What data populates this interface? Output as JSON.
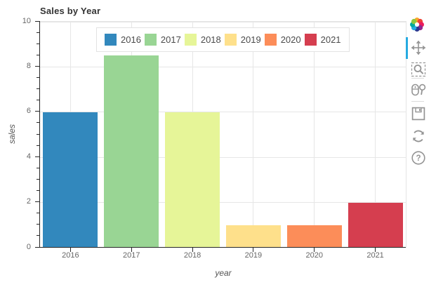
{
  "chart_data": {
    "type": "bar",
    "title": "Sales by Year",
    "categories": [
      "2016",
      "2017",
      "2018",
      "2019",
      "2020",
      "2021"
    ],
    "values": [
      6,
      8.5,
      6,
      1,
      1,
      2
    ],
    "bar_colors": [
      "#3288bd",
      "#99d594",
      "#e6f598",
      "#fee08b",
      "#fc8d59",
      "#d53e4f"
    ],
    "xlabel": "year",
    "ylabel": "sales",
    "ylim": [
      0,
      10
    ],
    "yticks": [
      0,
      2,
      4,
      6,
      8,
      10
    ],
    "minor_tick_step": 0.5,
    "grid": true,
    "legend_position": "top-center"
  },
  "legend": {
    "items": [
      {
        "label": "2016",
        "color": "#3288bd"
      },
      {
        "label": "2017",
        "color": "#99d594"
      },
      {
        "label": "2018",
        "color": "#e6f598"
      },
      {
        "label": "2019",
        "color": "#fee08b"
      },
      {
        "label": "2020",
        "color": "#fc8d59"
      },
      {
        "label": "2021",
        "color": "#d53e4f"
      }
    ]
  },
  "toolbar": {
    "logo": "bokeh-logo",
    "active_tool": "pan",
    "active_color": "#26aae1",
    "icon_color": "#949494",
    "tools": [
      {
        "id": "pan",
        "icon": "move-icon",
        "active": true
      },
      {
        "id": "box-zoom",
        "icon": "box-zoom-icon",
        "active": false
      },
      {
        "id": "wheel-zoom",
        "icon": "wheel-zoom-icon",
        "active": false
      },
      {
        "id": "save",
        "icon": "save-icon",
        "active": false
      },
      {
        "id": "reset",
        "icon": "reset-icon",
        "active": false
      },
      {
        "id": "help",
        "icon": "help-icon",
        "active": false
      }
    ]
  },
  "colors": {
    "grid": "#e6e6e6",
    "axis_line": "#262626",
    "tick_label": "#666666",
    "axis_title": "#555555",
    "title": "#333333",
    "legend_border": "#e3e3e3",
    "background": "#ffffff"
  }
}
